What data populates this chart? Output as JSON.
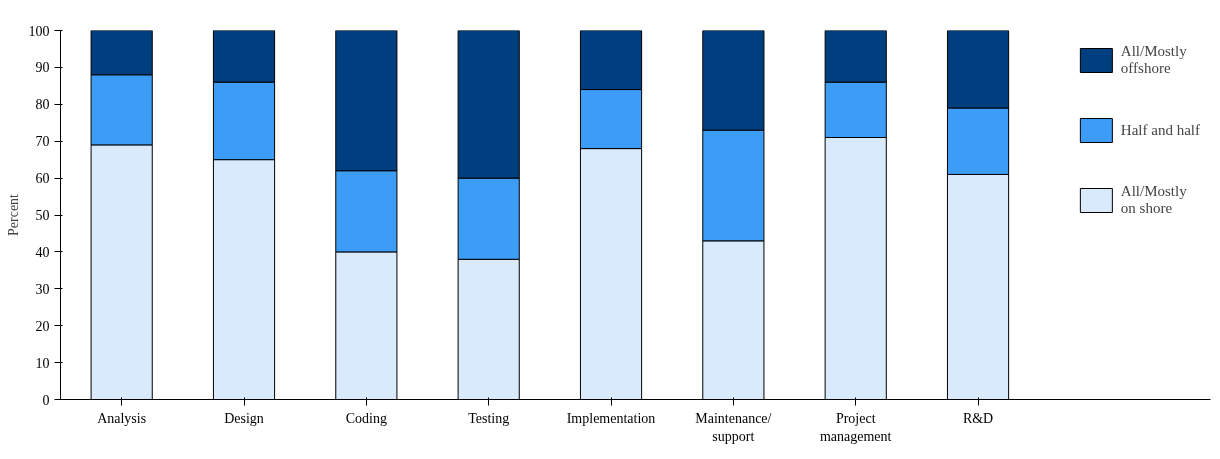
{
  "chart_data": {
    "type": "bar",
    "stacked": true,
    "ylabel": "Percent",
    "categories": [
      "Analysis",
      "Design",
      "Coding",
      "Testing",
      "Implementation",
      "Maintenance/\nsupport",
      "Project\nmanagement",
      "R&D"
    ],
    "series": [
      {
        "name": "All/Mostly\non shore",
        "color": "#d9eafc",
        "values": [
          69,
          65,
          40,
          38,
          68,
          43,
          71,
          61
        ]
      },
      {
        "name": "Half and half",
        "color": "#3d9df6",
        "values": [
          19,
          21,
          22,
          22,
          16,
          30,
          15,
          18
        ]
      },
      {
        "name": "All/Mostly\noffshore",
        "color": "#003f7f",
        "values": [
          12,
          14,
          38,
          40,
          16,
          27,
          14,
          21
        ]
      }
    ],
    "ylim": [
      0,
      100
    ],
    "yticks": [
      0,
      10,
      20,
      30,
      40,
      50,
      60,
      70,
      80,
      90,
      100
    ],
    "grid": false,
    "legend": "top right"
  }
}
